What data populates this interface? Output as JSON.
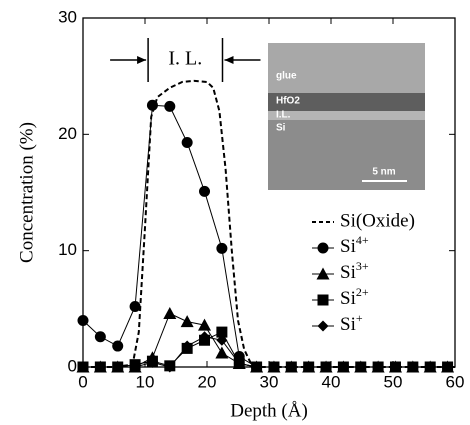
{
  "chart_data": {
    "type": "line",
    "x_label": "Depth (Å)",
    "y_label": "Concentration (%)",
    "xlim": [
      0,
      60
    ],
    "xticks": [
      0,
      10,
      20,
      30,
      40,
      50,
      60
    ],
    "ylim": [
      0,
      30
    ],
    "yticks": [
      0,
      10,
      20,
      30
    ],
    "interface_layer": {
      "label": "I. L.",
      "from": 10.5,
      "to": 22.5
    },
    "inset": {
      "labels": [
        "glue",
        "HfO2",
        "I.L.",
        "Si"
      ],
      "scale_bar": "5 nm"
    },
    "series": [
      {
        "name": "Si(Oxide)",
        "color": "#000000",
        "style": "dashed",
        "marker": "none",
        "x": [
          0,
          5,
          8,
          9,
          10,
          11,
          12,
          14,
          16,
          18,
          20,
          21,
          22,
          23,
          24,
          25,
          26,
          27,
          28,
          60
        ],
        "values": [
          0,
          0,
          0.2,
          3,
          12,
          21.5,
          23.2,
          24,
          24.5,
          24.6,
          24.5,
          24,
          22,
          17,
          10,
          4,
          1.5,
          0.4,
          0,
          0
        ]
      },
      {
        "name": "Si4+",
        "color": "#000000",
        "style": "solid",
        "marker": "circle",
        "x": [
          0,
          2.8,
          5.6,
          8.4,
          11.2,
          14,
          16.8,
          19.6,
          22.4,
          25.2,
          28,
          30.8,
          33.6,
          36.4,
          39.2,
          42,
          44.8,
          47.6,
          50.4,
          53.2,
          56,
          58.8
        ],
        "values": [
          4.0,
          2.6,
          1.8,
          5.2,
          22.5,
          22.4,
          19.3,
          15.1,
          10.2,
          0.9,
          0,
          0,
          0,
          0,
          0,
          0,
          0,
          0,
          0,
          0,
          0,
          0
        ]
      },
      {
        "name": "Si3+",
        "color": "#000000",
        "style": "solid",
        "marker": "triangle",
        "x": [
          0,
          2.8,
          5.6,
          8.4,
          11.2,
          14,
          16.8,
          19.6,
          22.4,
          25.2,
          28,
          30.8,
          33.6,
          36.4,
          39.2,
          42,
          44.8,
          47.6,
          50.4,
          53.2,
          56,
          58.8
        ],
        "values": [
          0,
          0,
          0,
          0,
          0.8,
          4.6,
          3.9,
          3.6,
          1.2,
          0.3,
          0,
          0,
          0,
          0,
          0,
          0,
          0,
          0,
          0,
          0,
          0,
          0
        ]
      },
      {
        "name": "Si2+",
        "color": "#000000",
        "style": "solid",
        "marker": "square",
        "x": [
          0,
          2.8,
          5.6,
          8.4,
          11.2,
          14,
          16.8,
          19.6,
          22.4,
          25.2,
          28,
          30.8,
          33.6,
          36.4,
          39.2,
          42,
          44.8,
          47.6,
          50.4,
          53.2,
          56,
          58.8
        ],
        "values": [
          0,
          0,
          0,
          0.2,
          0.5,
          0.1,
          1.6,
          2.3,
          3.0,
          0.3,
          0,
          0,
          0,
          0,
          0,
          0,
          0,
          0,
          0,
          0,
          0,
          0
        ]
      },
      {
        "name": "Si+",
        "color": "#000000",
        "style": "solid",
        "marker": "diamond",
        "x": [
          0,
          2.8,
          5.6,
          8.4,
          11.2,
          14,
          16.8,
          19.6,
          22.4,
          25.2,
          28,
          30.8,
          33.6,
          36.4,
          39.2,
          42,
          44.8,
          47.6,
          50.4,
          53.2,
          56,
          58.8
        ],
        "values": [
          0,
          0,
          0,
          0,
          0.4,
          0,
          1.8,
          2.6,
          2.3,
          0.3,
          0,
          0,
          0,
          0,
          0,
          0,
          0,
          0,
          0,
          0,
          0,
          0
        ]
      }
    ]
  }
}
